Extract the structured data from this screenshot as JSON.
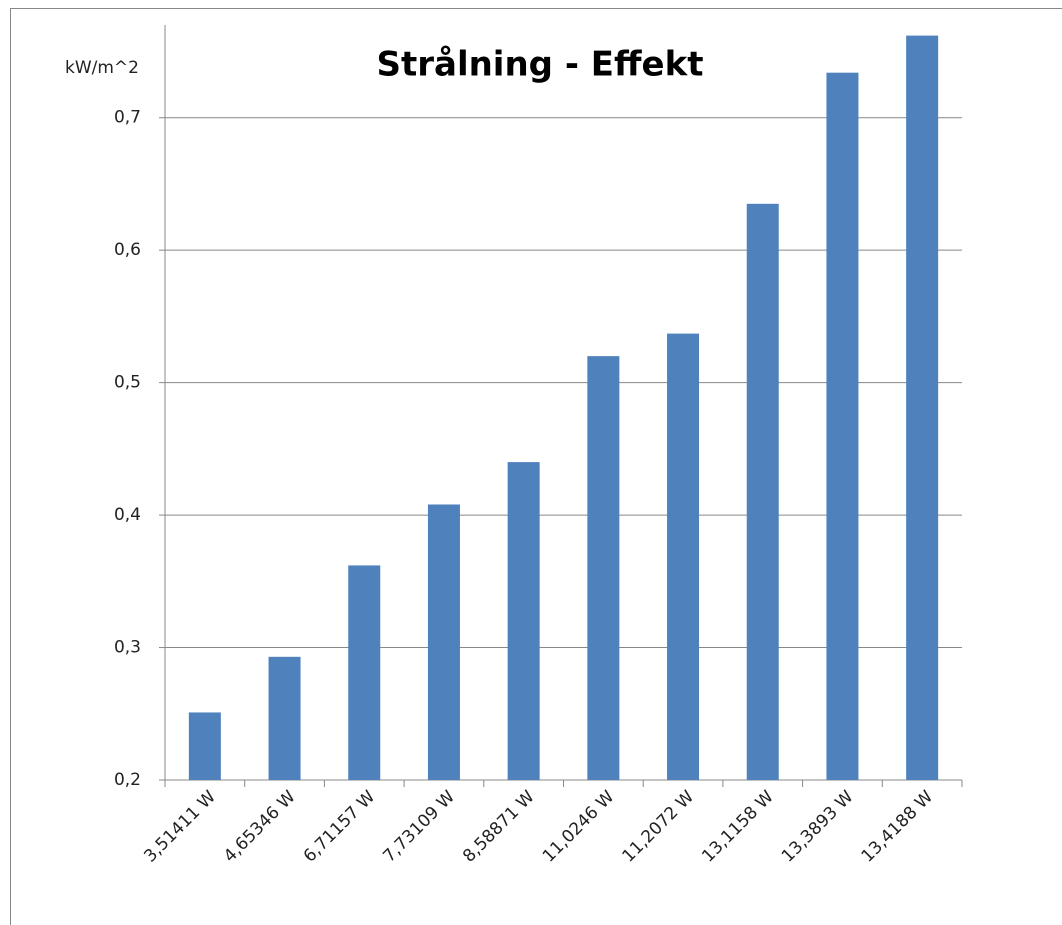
{
  "chart_data": {
    "type": "bar",
    "title": "Strålning - Effekt",
    "y_label": "kW/m^2",
    "categories": [
      "3,51411 W",
      "4,65346 W",
      "6,71157 W",
      "7,73109 W",
      "8,58871 W",
      "11,0246 W",
      "11,2072 W",
      "13,1158 W",
      "13,3893 W",
      "13,4188 W"
    ],
    "values": [
      0.251,
      0.293,
      0.362,
      0.408,
      0.44,
      0.52,
      0.537,
      0.635,
      0.734,
      0.762
    ],
    "color": "#4f81bd",
    "ylim": [
      0.2,
      0.77
    ],
    "yticks": [
      {
        "value": 0.2,
        "label": "0,2"
      },
      {
        "value": 0.3,
        "label": "0,3"
      },
      {
        "value": 0.4,
        "label": "0,4"
      },
      {
        "value": 0.5,
        "label": "0,5"
      },
      {
        "value": 0.6,
        "label": "0,6"
      },
      {
        "value": 0.7,
        "label": "0,7"
      }
    ],
    "grid": true
  }
}
